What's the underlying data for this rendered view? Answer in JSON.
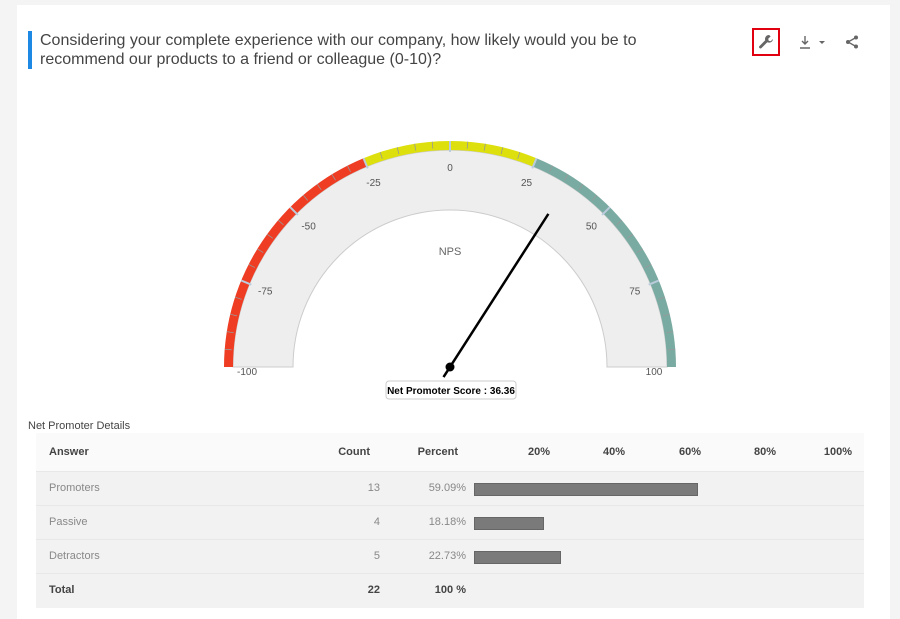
{
  "question": "Considering your complete experience with our company, how likely would you be to recommend our products to a friend or colleague (0-10)?",
  "toolbar": {
    "settings_icon": "wrench-icon",
    "download_icon": "download-icon",
    "share_icon": "share-icon"
  },
  "gauge": {
    "label": "NPS",
    "min": -100,
    "max": 100,
    "value": 36.36,
    "value_label": "Net Promoter Score : 36.36",
    "tick_labels": [
      "-100",
      "-75",
      "-50",
      "-25",
      "0",
      "25",
      "50",
      "75",
      "100"
    ],
    "bands": [
      {
        "from": -100,
        "to": -25,
        "color": "#ee3d23"
      },
      {
        "from": -25,
        "to": 25,
        "color": "#dde00c"
      },
      {
        "from": 25,
        "to": 100,
        "color": "#7aaba2"
      }
    ]
  },
  "details": {
    "title": "Net Promoter Details",
    "headers": {
      "answer": "Answer",
      "count": "Count",
      "percent": "Percent"
    },
    "scale": [
      "20%",
      "40%",
      "60%",
      "80%",
      "100%"
    ],
    "rows": [
      {
        "answer": "Promoters",
        "count": "13",
        "percent": "59.09%",
        "value": 59.09
      },
      {
        "answer": "Passive",
        "count": "4",
        "percent": "18.18%",
        "value": 18.18
      },
      {
        "answer": "Detractors",
        "count": "5",
        "percent": "22.73%",
        "value": 22.73
      }
    ],
    "total": {
      "answer": "Total",
      "count": "22",
      "percent": "100 %"
    }
  }
}
